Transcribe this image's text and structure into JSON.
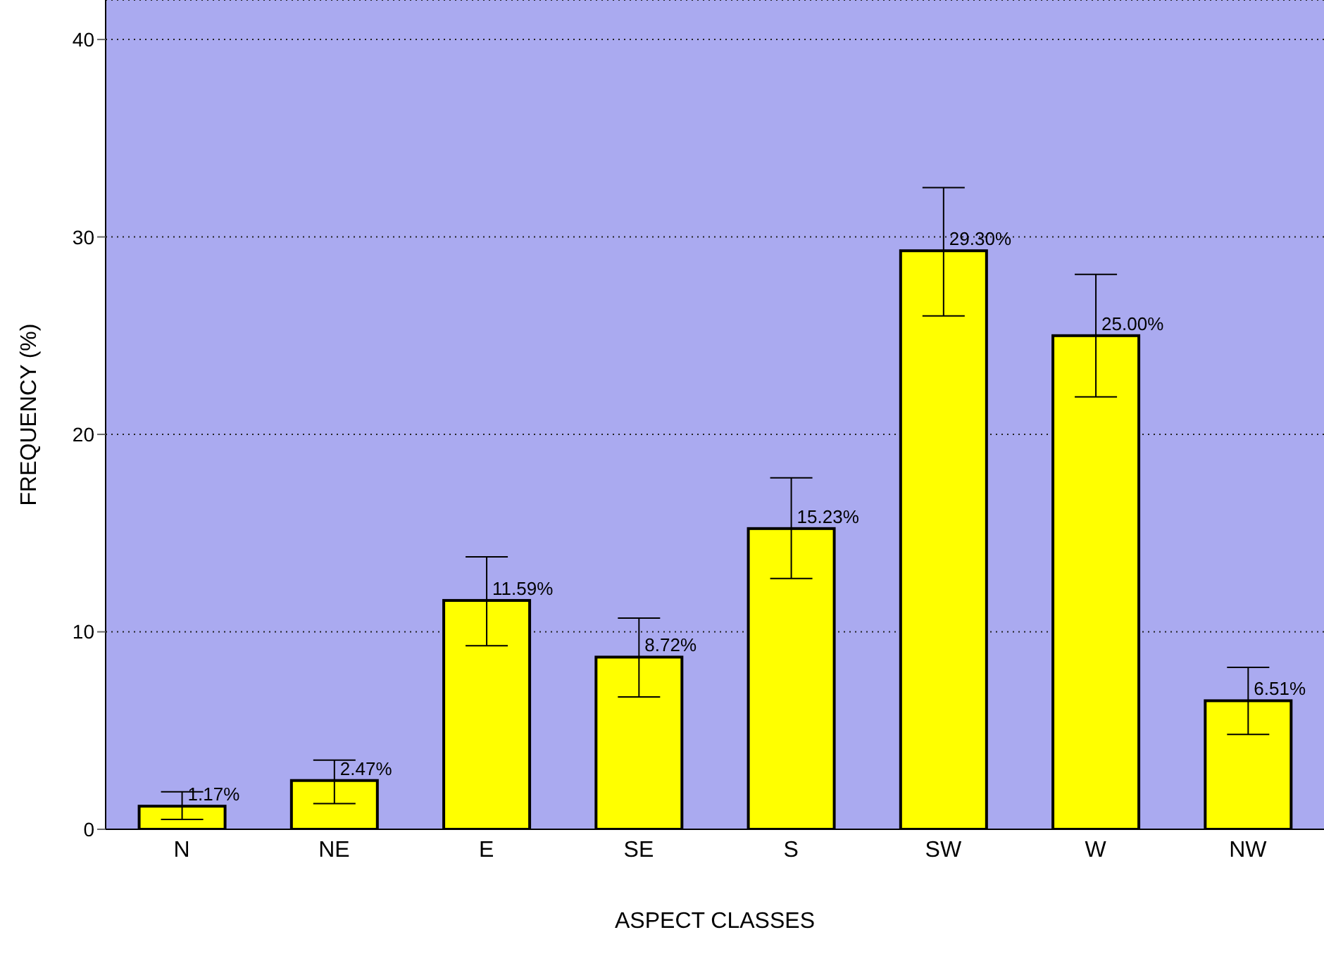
{
  "chart_data": {
    "type": "bar",
    "xlabel": "ASPECT CLASSES",
    "ylabel": "FREQUENCY (%)",
    "categories": [
      "N",
      "NE",
      "E",
      "SE",
      "S",
      "SW",
      "W",
      "NW"
    ],
    "values": [
      1.17,
      2.47,
      11.59,
      8.72,
      15.23,
      29.3,
      25.0,
      6.51
    ],
    "value_labels": [
      "1.17%",
      "2.47%",
      "11.59%",
      "8.72%",
      "15.23%",
      "29.30%",
      "25.00%",
      "6.51%"
    ],
    "errors": [
      [
        0.5,
        1.9
      ],
      [
        1.3,
        3.5
      ],
      [
        9.3,
        13.8
      ],
      [
        6.7,
        10.7
      ],
      [
        12.7,
        17.8
      ],
      [
        26.0,
        32.5
      ],
      [
        21.9,
        28.1
      ],
      [
        4.8,
        8.2
      ]
    ],
    "color": "#ffff00",
    "ylim": [
      0,
      42
    ],
    "yticks": [
      0,
      10,
      20,
      30,
      40
    ],
    "grid": "y"
  }
}
